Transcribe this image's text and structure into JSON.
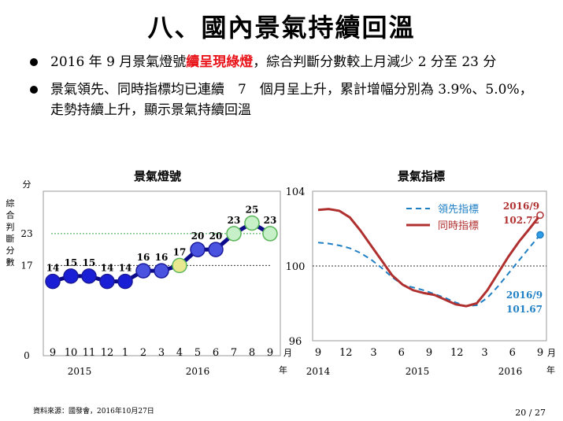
{
  "title": "八、國內景氣持續回溫",
  "bullets": [
    {
      "pre": "2016 年 9 月景氣燈號",
      "highlight": "續呈現綠燈",
      "post": "，綜合判斷分數較上月減少 2 分至 23 分"
    },
    {
      "pre": "景氣領先、同時指標均已連續　7　個月呈上升，累計增幅分別為 3.9%、5.0%，走勢持續上升，顯示景氣持續回溫",
      "highlight": "",
      "post": ""
    }
  ],
  "footer": {
    "source": "資料來源：國發會，2016年10月27日",
    "page": "20 / 27"
  },
  "chart_data": [
    {
      "type": "line",
      "title": "景氣燈號",
      "ylabel": "綜合判斷分數",
      "yunit": "分",
      "xunit": "月",
      "yearunit": "年",
      "yticks": [
        "23",
        "17",
        "0"
      ],
      "categories": [
        "9",
        "10",
        "11",
        "12",
        "1",
        "2",
        "3",
        "4",
        "5",
        "6",
        "7",
        "8",
        "9"
      ],
      "years": [
        "2015",
        "2016"
      ],
      "values": [
        14,
        15,
        15,
        14,
        14,
        16,
        16,
        17,
        20,
        20,
        23,
        25,
        23
      ],
      "value_labels": [
        "14",
        "15",
        "15",
        "14",
        "14",
        "16",
        "16",
        "17",
        "20",
        "20",
        "23",
        "25",
        "23"
      ],
      "signals": [
        "blue",
        "blue",
        "blue",
        "blue",
        "blue",
        "yellow-blue",
        "yellow-blue",
        "green",
        "yellow-blue",
        "yellow-blue",
        "green",
        "green",
        "green"
      ],
      "thresholds": [
        23,
        17
      ],
      "ylim": [
        0,
        31
      ],
      "colors": {
        "blue": "#1a1fd6",
        "yellow-blue": "#e6e67a",
        "green": "#c8f0c8",
        "line": "#0b0b8a"
      }
    },
    {
      "type": "line",
      "title": "景氣指標",
      "xunit": "月",
      "yearunit": "年",
      "yticks": [
        "104",
        "100",
        "96"
      ],
      "ylim": [
        96,
        104
      ],
      "reference": 100,
      "xticks": [
        "9",
        "12",
        "3",
        "6",
        "9",
        "12",
        "3",
        "6",
        "9"
      ],
      "years": [
        "2014",
        "2015",
        "2016"
      ],
      "series": [
        {
          "name": "領先指標",
          "color": "#1f7fc4",
          "dash": true,
          "values": [
            101.25,
            101.2,
            101.1,
            100.95,
            100.7,
            100.35,
            99.9,
            99.4,
            99.0,
            98.85,
            98.7,
            98.5,
            98.3,
            98.05,
            97.85,
            97.9,
            98.3,
            98.9,
            99.6,
            100.3,
            101.0,
            101.67
          ]
        },
        {
          "name": "同時指標",
          "color": "#b03030",
          "dash": false,
          "values": [
            103.0,
            103.05,
            102.95,
            102.6,
            101.9,
            101.1,
            100.3,
            99.5,
            99.0,
            98.7,
            98.55,
            98.45,
            98.2,
            97.95,
            97.85,
            98.0,
            98.7,
            99.6,
            100.5,
            101.3,
            102.0,
            102.72
          ]
        }
      ],
      "end_labels": [
        {
          "date": "2016/9",
          "value": "102.72",
          "color": "#b03030"
        },
        {
          "date": "2016/9",
          "value": "101.67",
          "color": "#1f7fc4"
        }
      ]
    }
  ]
}
